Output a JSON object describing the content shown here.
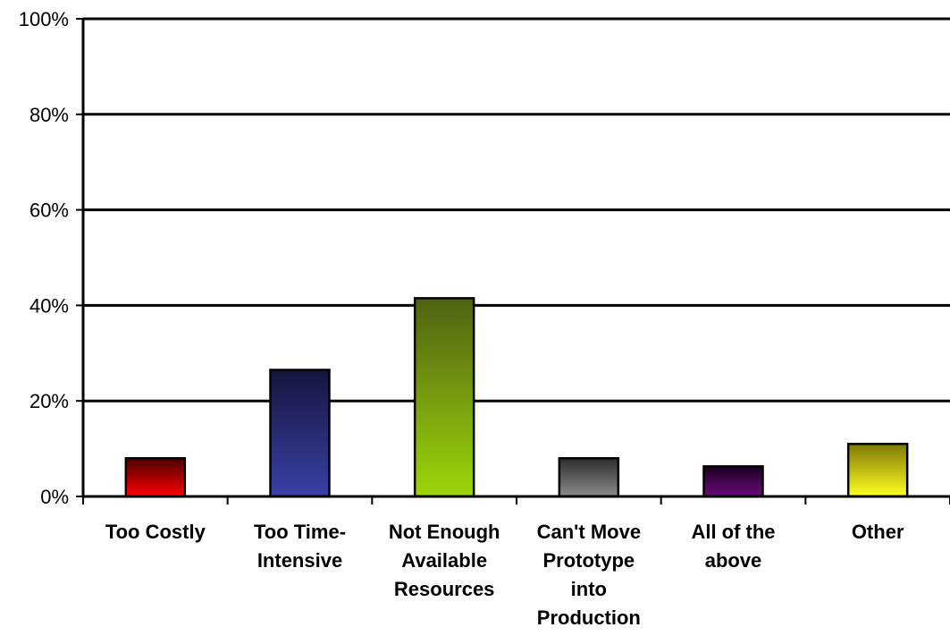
{
  "chart_data": {
    "type": "bar",
    "categories": [
      [
        "Too Costly"
      ],
      [
        "Too Time-",
        "Intensive"
      ],
      [
        "Not Enough",
        "Available",
        "Resources"
      ],
      [
        "Can't Move",
        "Prototype",
        "into",
        "Production"
      ],
      [
        "All of the",
        "above"
      ],
      [
        "Other"
      ]
    ],
    "values": [
      8,
      26.5,
      41.5,
      8,
      6.3,
      11
    ],
    "value_unit": "%",
    "ylim": [
      0,
      100
    ],
    "yticks": [
      "0%",
      "20%",
      "40%",
      "60%",
      "80%",
      "100%"
    ],
    "ytick_values": [
      0,
      20,
      40,
      60,
      80,
      100
    ],
    "grid": true,
    "title": "",
    "xlabel": "",
    "ylabel": "",
    "bar_colors": [
      {
        "top": "#4a0000",
        "bottom": "#ff0000"
      },
      {
        "top": "#14163d",
        "bottom": "#3a3fa6"
      },
      {
        "top": "#4f6212",
        "bottom": "#9ed60a"
      },
      {
        "top": "#2c2c2c",
        "bottom": "#8c8c8c"
      },
      {
        "top": "#1a0020",
        "bottom": "#6a0a7a"
      },
      {
        "top": "#807a05",
        "bottom": "#ffff22"
      }
    ]
  }
}
